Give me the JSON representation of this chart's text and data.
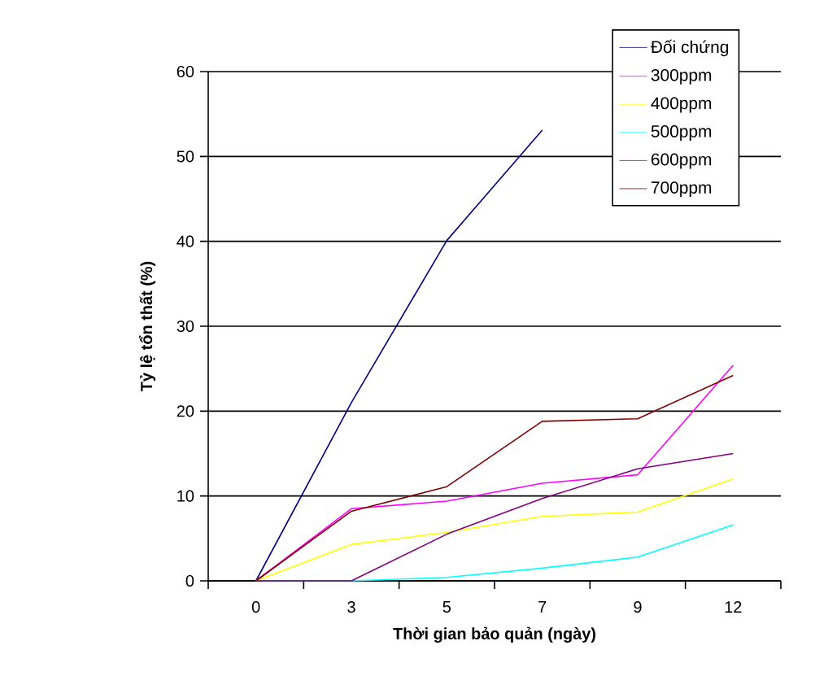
{
  "chart_data": {
    "type": "line",
    "xlabel": "Thời gian bảo quản (ngày)",
    "ylabel": "Tỷ lệ tổn thất (%)",
    "categories": [
      "0",
      "3",
      "5",
      "7",
      "9",
      "12"
    ],
    "series": [
      {
        "name": "Đối chứng",
        "color": "#000080",
        "values": [
          0,
          21.0,
          40.1,
          53.1,
          null,
          null
        ]
      },
      {
        "name": "300ppm",
        "color": "#ff00ff",
        "values": [
          0,
          8.5,
          9.4,
          11.5,
          12.5,
          25.4
        ]
      },
      {
        "name": "400ppm",
        "color": "#ffff00",
        "values": [
          0,
          4.3,
          5.7,
          7.6,
          8.1,
          12.0
        ]
      },
      {
        "name": "500ppm",
        "color": "#00ffff",
        "values": [
          0,
          0,
          0.4,
          1.5,
          2.8,
          6.6
        ]
      },
      {
        "name": "600ppm",
        "color": "#800080",
        "values": [
          0,
          0,
          5.5,
          9.7,
          13.2,
          15.0
        ]
      },
      {
        "name": "700ppm",
        "color": "#800000",
        "values": [
          0,
          8.2,
          11.1,
          18.8,
          19.1,
          24.2
        ]
      }
    ],
    "ylim": [
      0,
      60
    ],
    "yticks": [
      0,
      10,
      20,
      30,
      40,
      50,
      60
    ],
    "grid": "y",
    "legend": "top right",
    "marker": "none",
    "line_style": "solid"
  }
}
